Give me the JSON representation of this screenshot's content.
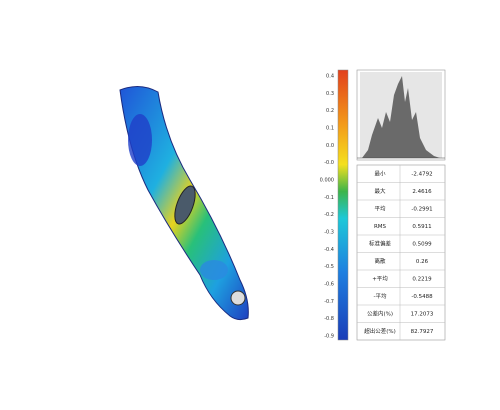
{
  "colorbar": {
    "labels": [
      "0.4",
      "0.3",
      "0.2",
      "0.1",
      "0.0",
      "-0.0",
      "0.000",
      "-0.1",
      "-0.2",
      "-0.3",
      "-0.4",
      "-0.5",
      "-0.6",
      "-0.7",
      "-0.8",
      "-0.9"
    ]
  },
  "table": {
    "rows": [
      [
        "最小",
        "-2.4792"
      ],
      [
        "最大",
        "2.4616"
      ],
      [
        "平均",
        "-0.2991"
      ],
      [
        "RMS",
        "0.5911"
      ],
      [
        "标准偏差",
        "0.5099"
      ],
      [
        "离散",
        "0.26"
      ],
      [
        "+平均",
        "0.2219"
      ],
      [
        "-平均",
        "-0.5488"
      ],
      [
        "公差内(%)",
        "17.2073"
      ],
      [
        "超出公差(%)",
        "82.7927"
      ]
    ]
  }
}
